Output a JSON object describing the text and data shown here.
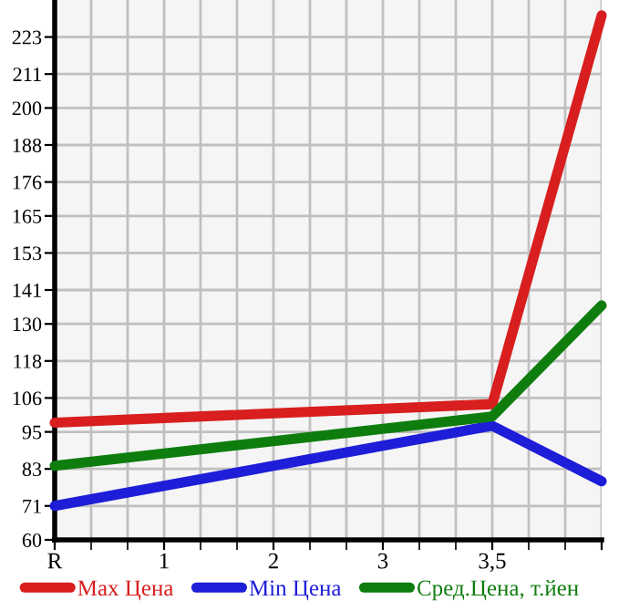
{
  "chart_data": {
    "type": "line",
    "categories": [
      "R",
      "1",
      "2",
      "3",
      "3,5",
      null
    ],
    "series": [
      {
        "name": "Max Цена",
        "color": "#d81e1e",
        "values": [
          98,
          99.5,
          101,
          102.5,
          104,
          230
        ]
      },
      {
        "name": "Min Цена",
        "color": "#1e1ed8",
        "values": [
          71,
          77.5,
          84,
          90.5,
          97,
          79
        ]
      },
      {
        "name": "Сред.Цена, т.йен",
        "color": "#0e7d0e",
        "values": [
          84,
          88,
          92,
          96,
          100,
          136
        ]
      }
    ],
    "ylim": [
      60,
      235
    ],
    "yticks": [
      60,
      71,
      83,
      95,
      106,
      118,
      130,
      141,
      153,
      165,
      176,
      188,
      200,
      211,
      223
    ],
    "grid": true,
    "legend": "bottom",
    "marker": "none",
    "line_style": "solid"
  }
}
